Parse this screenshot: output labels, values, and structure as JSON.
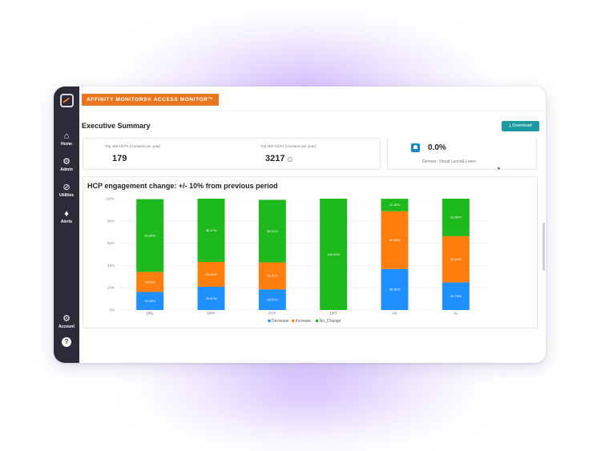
{
  "app": {
    "brand_label": "AFFINITY MONITORS® ACCESS MONITOR™",
    "page_title": "Executive Summary",
    "download_label": "Download"
  },
  "sidebar": {
    "items": [
      {
        "label": "Home",
        "icon": "home-icon"
      },
      {
        "label": "Admin",
        "icon": "gear-icon"
      },
      {
        "label": "Utilities",
        "icon": "link-icon"
      },
      {
        "label": "Alerts",
        "icon": "bell-icon"
      }
    ],
    "account_label": "Account",
    "help_label": "?"
  },
  "kpis": [
    {
      "label": "Top 25K HCPs (Contacts per year)",
      "value": "179"
    },
    {
      "label": "Top 25K HCPs (Contacts per year)",
      "value": "3217"
    }
  ],
  "remote_card": {
    "value": "0.0%",
    "label": "Remote: Virtual Lunch& Learn"
  },
  "colors": {
    "decrease": "#1e90ff",
    "increase": "#ff7f0e",
    "no_change": "#1db91d",
    "brand": "#e8761e",
    "sidebar": "#2b2b3a",
    "button": "#1b9aa3"
  },
  "chart_data": {
    "type": "bar",
    "stacked": true,
    "title": "HCP engagement change: +/- 10% from previous period",
    "categories": [
      "DRL",
      "DPH",
      "PHY",
      "DRT",
      "AK",
      "AL"
    ],
    "y_ticks": [
      "0%",
      "20%",
      "40%",
      "60%",
      "80%",
      "100%"
    ],
    "ylim": [
      0,
      100
    ],
    "grid": true,
    "legend_position": "bottom",
    "series": [
      {
        "name": "Decrease",
        "values": [
          16.18,
          20.87,
          18.57,
          0,
          36.86,
          24.79
        ],
        "labels": [
          "16.18%",
          "20.87%",
          "18.57%",
          "",
          "36.86%",
          "24.79%"
        ]
      },
      {
        "name": "Increase",
        "values": [
          18.03,
          22.29,
          24.21,
          0,
          51.88,
          41.61
        ],
        "labels": [
          "18.03%",
          "22.29%",
          "24.21%",
          "",
          "51.88%",
          "41.61%"
        ]
      },
      {
        "name": "No_Change",
        "values": [
          65.36,
          56.97,
          56.22,
          100,
          11.18,
          33.6
        ],
        "labels": [
          "65.36%",
          "56.97%",
          "56.22%",
          "100.00%",
          "11.18%",
          "33.60%"
        ]
      }
    ]
  }
}
